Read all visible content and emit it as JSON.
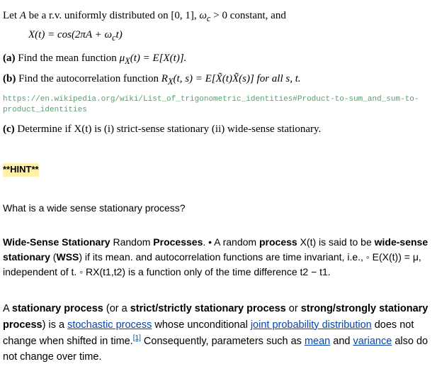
{
  "intro": {
    "text1": "Let ",
    "var_A": "A",
    "text2": " be a r.v. uniformly distributed on [0, 1], ",
    "var_wc": "ω",
    "var_wc_sub": "c",
    "text3": " > 0 constant, and"
  },
  "equation": {
    "lhs": "X(t) = cos(2πA + ω",
    "sub": "c",
    "rhs": "t)"
  },
  "parts": {
    "a": {
      "label": "(a)",
      "text1": " Find the mean function ",
      "mu": "μ",
      "sub": "X",
      "text2": "(t) = E[X(t)]."
    },
    "b": {
      "label": "(b)",
      "text1": " Find the autocorrelation function ",
      "Rx": "R",
      "sub": "X",
      "text2": "(t, s) = E[X̃(t)X̃(s)] for all s, t."
    },
    "c": {
      "label": "(c)",
      "text1": " Determine if X(t) is (i) strict-sense stationary (ii) wide-sense stationary."
    }
  },
  "url": "https://en.wikipedia.org/wiki/List_of_trigonometric_identities#Product-to-sum_and_sum-to-product_identities",
  "hint": "**HINT**",
  "question": "What is a wide sense stationary process?",
  "wss": {
    "bold1": "Wide-Sense Stationary",
    "plain1": " Random ",
    "bold2": "Processes",
    "plain2": ". • A random ",
    "bold3": "process",
    "plain3": " X(t) is said to be ",
    "bold4": "wide-sense stationary",
    "plain4": " (",
    "bold5": "WSS",
    "plain5": ") if its mean. and autocorrelation functions are time invariant, i.e., ◦ E(X(t)) = μ, independent of t. ◦ RX(t1,t2) is a function only of the time difference t2 − t1."
  },
  "stat": {
    "t1": "A ",
    "b1": "stationary process",
    "t2": " (or a ",
    "b2": "strict/strictly stationary process",
    "t3": " or ",
    "b3": "strong/strongly stationary process",
    "t4": ") is a ",
    "link1": "stochastic process",
    "t5": " whose unconditional ",
    "link2": "joint probability distribution",
    "t6": " does not change when shifted in time.",
    "ref": "[1]",
    "t7": " Consequently, parameters such as ",
    "link3": "mean",
    "t8": " and ",
    "link4": "variance",
    "t9": " also do not change over time."
  }
}
